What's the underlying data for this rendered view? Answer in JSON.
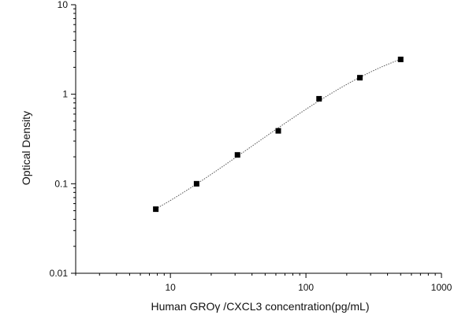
{
  "chart_data": {
    "type": "scatter",
    "title": "",
    "xlabel": "Human GROγ /CXCL3 concentration(pg/mL)",
    "ylabel": "Optical Density",
    "x_scale": "log",
    "y_scale": "log",
    "xlim": [
      2,
      1000
    ],
    "ylim": [
      0.01,
      10
    ],
    "x_tick_labels": [
      "10",
      "100",
      "1000"
    ],
    "y_tick_labels": [
      "0.01",
      "0.1",
      "1",
      "10"
    ],
    "grid": false,
    "legend": "none",
    "fit_curve": "dotted",
    "series": [
      {
        "x": [
          7.8,
          15.6,
          31.25,
          62.5,
          125,
          250,
          500
        ],
        "y": [
          0.052,
          0.1,
          0.21,
          0.39,
          0.89,
          1.53,
          2.45
        ]
      }
    ],
    "colors": {
      "axis": "#000000",
      "marker": "#000000",
      "curve": "#555555"
    }
  }
}
